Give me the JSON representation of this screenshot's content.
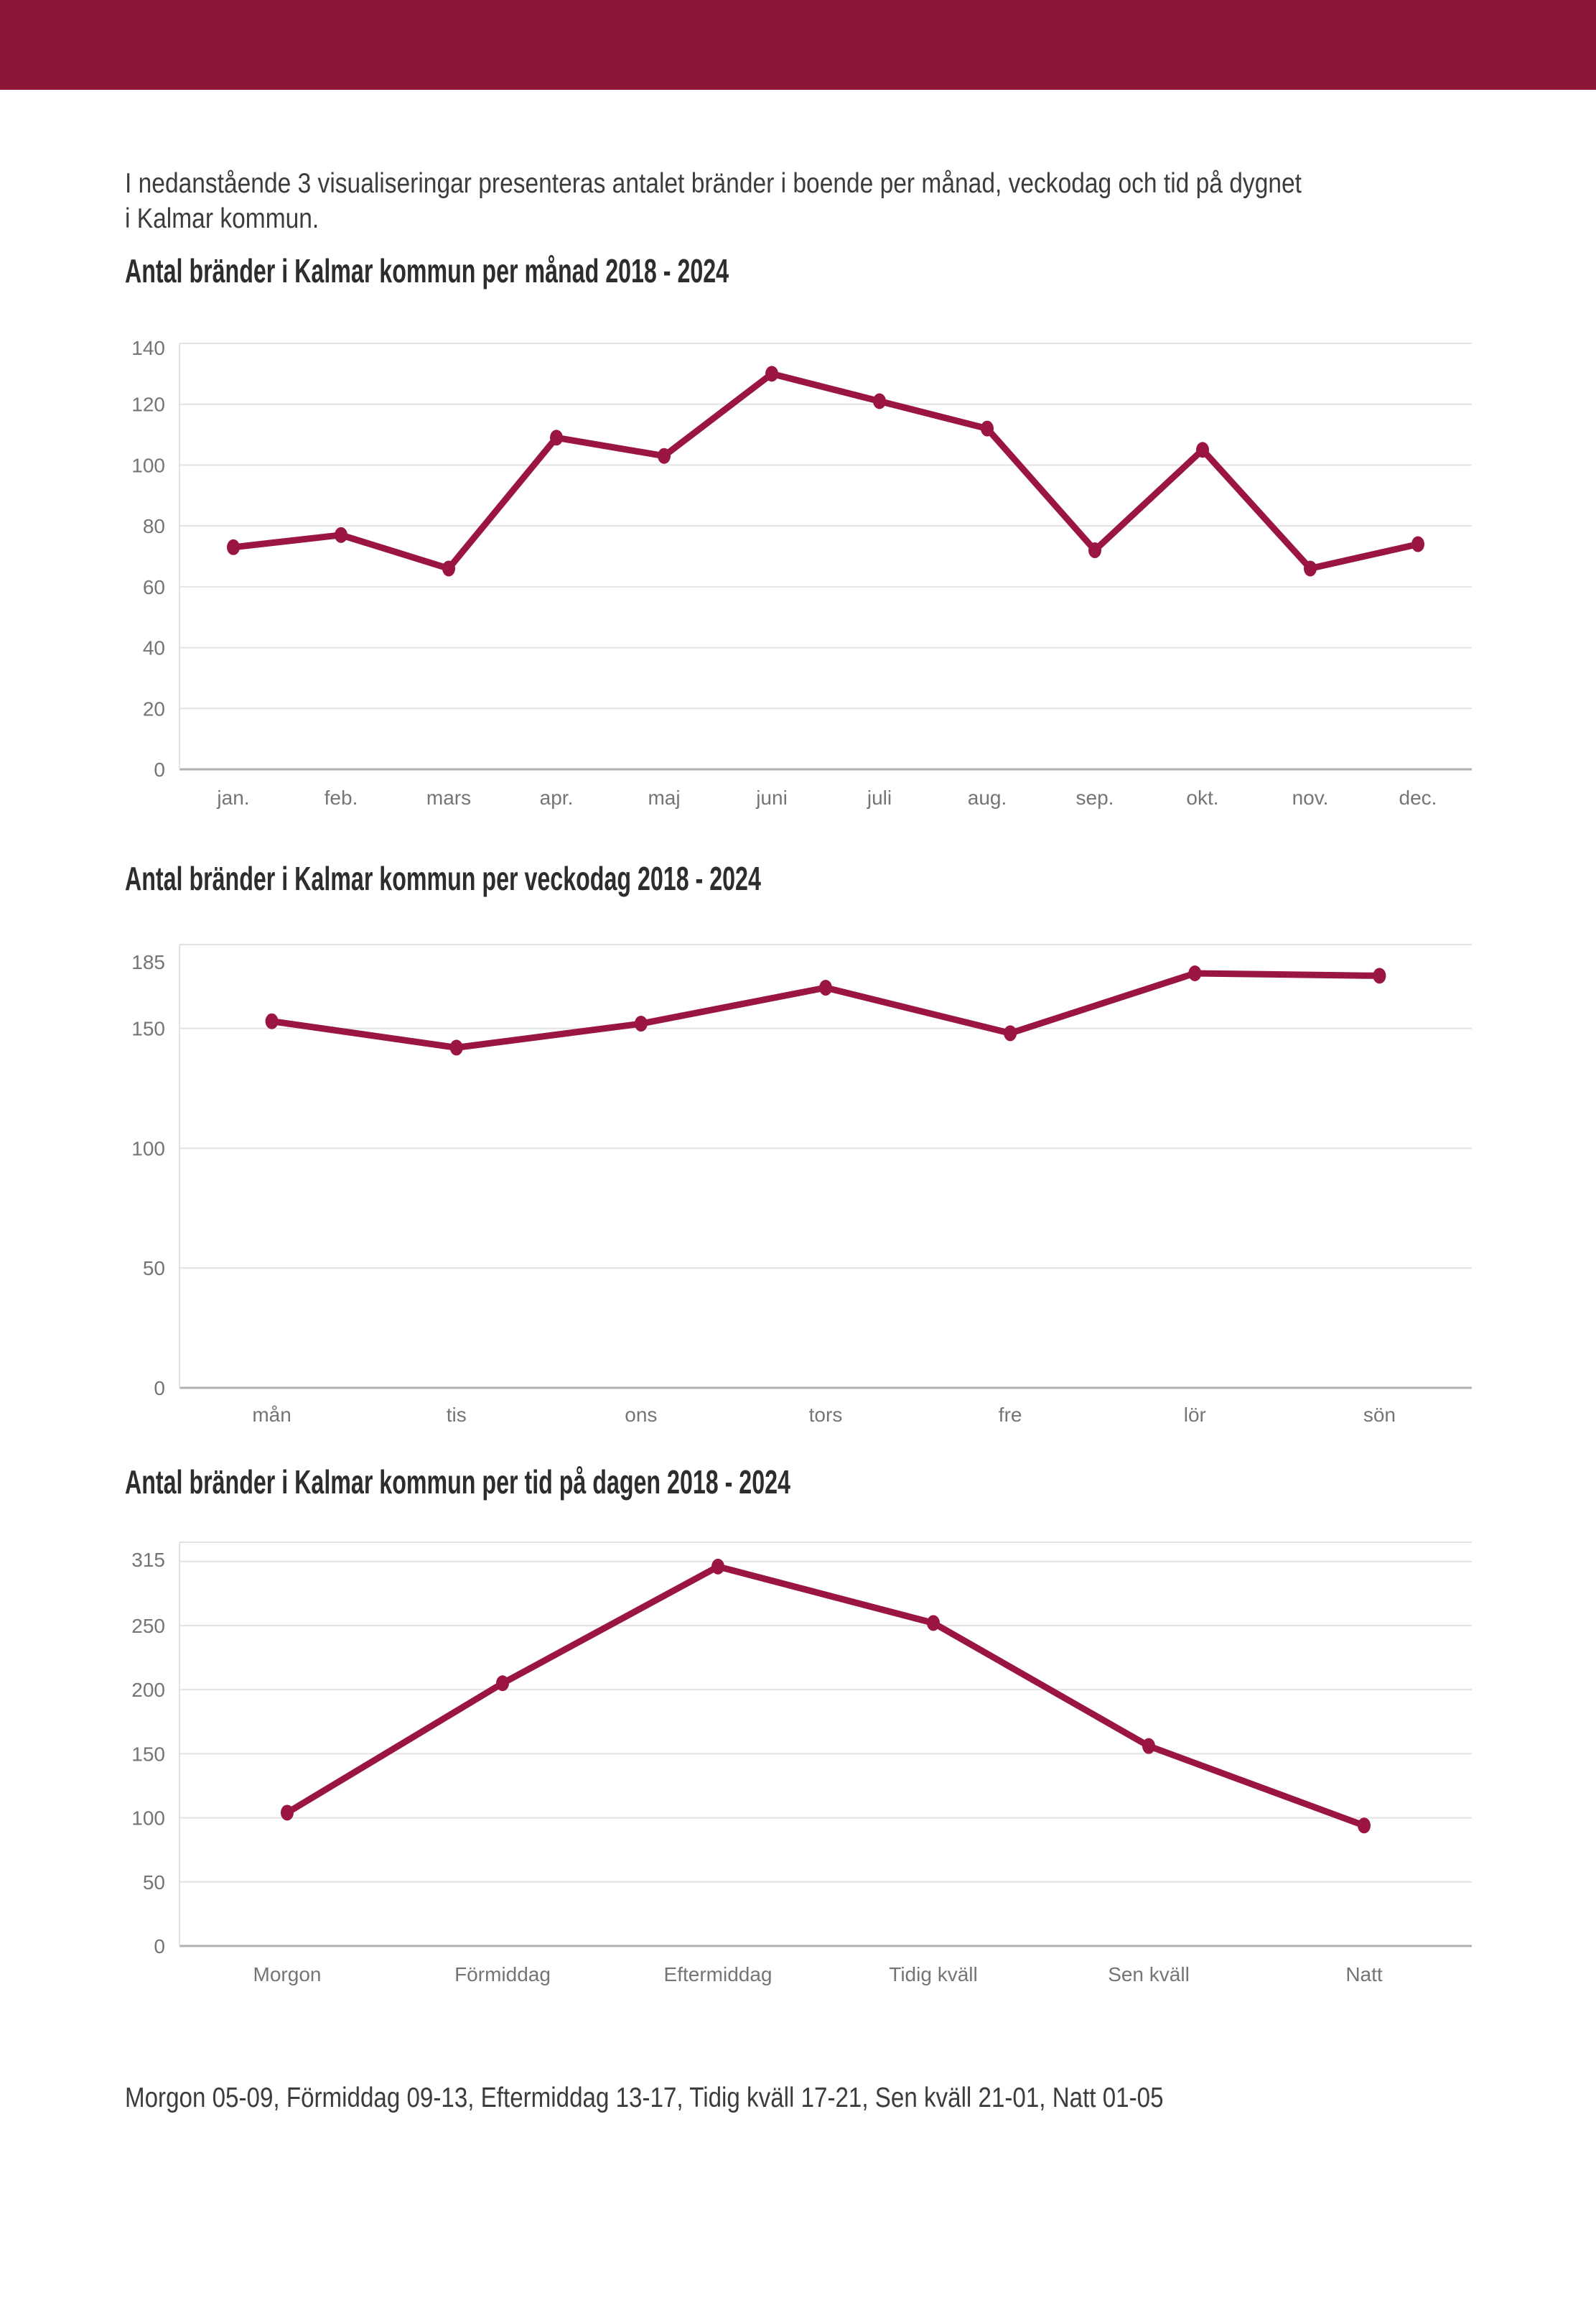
{
  "page": {
    "intro_line1": "I nedanstående 3 visualiseringar presenteras antalet bränder i boende per månad, veckodag och tid på dygnet",
    "intro_line2": "i Kalmar kommun.",
    "footnote": "Morgon 05-09, Förmiddag 09-13, Eftermiddag 13-17, Tidig kväll 17-21, Sen kväll 21-01, Natt 01-05"
  },
  "colors": {
    "header_bar": "#8d1638",
    "line": "#9a1641",
    "grid": "#e3e3e3",
    "axis": "#b0b0b0",
    "tick_text": "#757575",
    "title_text": "#2d2d2d",
    "body_text": "#3c3c3c"
  },
  "chart_data": [
    {
      "id": "fires-per-month",
      "type": "line",
      "title": "Antal bränder i Kalmar kommun per månad 2018 - 2024",
      "xlabel": "",
      "ylabel": "",
      "categories": [
        "jan.",
        "feb.",
        "mars",
        "apr.",
        "maj",
        "juni",
        "juli",
        "aug.",
        "sep.",
        "okt.",
        "nov.",
        "dec."
      ],
      "values": [
        73,
        77,
        66,
        109,
        103,
        130,
        121,
        112,
        72,
        105,
        66,
        74
      ],
      "ylim": [
        0,
        140
      ],
      "yticks": [
        0,
        20,
        40,
        60,
        80,
        100,
        120,
        140
      ],
      "gridlines": [
        0,
        20,
        40,
        60,
        80,
        100,
        120,
        140
      ],
      "grid": true,
      "legend": false,
      "line_color": "#9a1641"
    },
    {
      "id": "fires-per-weekday",
      "type": "line",
      "title": "Antal bränder i Kalmar kommun per veckodag 2018 - 2024",
      "xlabel": "",
      "ylabel": "",
      "categories": [
        "mån",
        "tis",
        "ons",
        "tors",
        "fre",
        "lör",
        "sön"
      ],
      "values": [
        153,
        142,
        152,
        167,
        148,
        173,
        172
      ],
      "ylim": [
        0,
        185
      ],
      "yticks": [
        0,
        50,
        100,
        150,
        185
      ],
      "gridlines": [
        0,
        50,
        100,
        150,
        185
      ],
      "grid": true,
      "legend": false,
      "line_color": "#9a1641"
    },
    {
      "id": "fires-per-time-of-day",
      "type": "line",
      "title": "Antal bränder i Kalmar kommun per tid på dagen 2018 - 2024",
      "xlabel": "",
      "ylabel": "",
      "categories": [
        "Morgon",
        "Förmiddag",
        "Eftermiddag",
        "Tidig kväll",
        "Sen kväll",
        "Natt"
      ],
      "values": [
        104,
        205,
        296,
        252,
        156,
        94
      ],
      "ylim": [
        0,
        315
      ],
      "yticks": [
        0,
        50,
        100,
        150,
        200,
        250,
        315
      ],
      "gridlines": [
        0,
        50,
        100,
        150,
        200,
        250,
        300,
        315
      ],
      "grid": true,
      "legend": false,
      "line_color": "#9a1641"
    }
  ]
}
